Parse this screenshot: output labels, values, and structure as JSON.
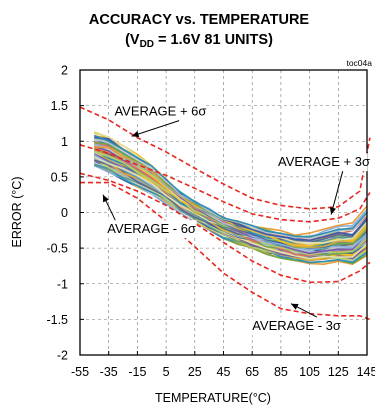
{
  "chart_data": {
    "type": "line",
    "title": "ACCURACY vs. TEMPERATURE",
    "subtitle_prefix": "(V",
    "subtitle_sub": "DD",
    "subtitle_suffix": " = 1.6V 81 UNITS)",
    "figure_id": "toc04a",
    "xlabel": "TEMPERATURE(°C)",
    "ylabel": "ERROR (°C)",
    "xlim": [
      -55,
      150
    ],
    "ylim": [
      -2,
      2
    ],
    "xticks": [
      -55,
      -35,
      -15,
      5,
      25,
      45,
      65,
      85,
      105,
      125,
      145
    ],
    "yticks": [
      2,
      1.5,
      1,
      0.5,
      0,
      -0.5,
      -1,
      -1.5,
      -2
    ],
    "grid": "dashed",
    "limit_lines": [
      {
        "label": "AVERAGE + 6σ",
        "color": "#e8261f",
        "x": [
          -55,
          -35,
          -15,
          5,
          25,
          45,
          65,
          85,
          105,
          125,
          140,
          150
        ],
        "y": [
          1.48,
          1.3,
          1.05,
          0.85,
          0.62,
          0.4,
          0.2,
          0.1,
          0.05,
          0.08,
          0.3,
          1.05
        ]
      },
      {
        "label": "AVERAGE + 3σ",
        "color": "#e8261f",
        "x": [
          -55,
          -35,
          -15,
          5,
          25,
          45,
          65,
          85,
          105,
          125,
          140,
          150
        ],
        "y": [
          0.95,
          0.83,
          0.67,
          0.52,
          0.34,
          0.15,
          -0.02,
          -0.1,
          -0.13,
          -0.08,
          0.05,
          0.28
        ]
      },
      {
        "label": "AVERAGE - 3σ",
        "color": "#e8261f",
        "x": [
          -55,
          -35,
          -15,
          5,
          25,
          45,
          65,
          85,
          105,
          125,
          140,
          150
        ],
        "y": [
          0.55,
          0.45,
          0.3,
          0.1,
          -0.15,
          -0.42,
          -0.68,
          -0.88,
          -0.98,
          -0.97,
          -0.82,
          -0.7
        ]
      },
      {
        "label": "AVERAGE - 6σ",
        "color": "#e8261f",
        "x": [
          -55,
          -35,
          -15,
          5,
          25,
          45,
          65,
          85,
          105,
          125,
          140,
          150
        ],
        "y": [
          0.42,
          0.42,
          0.2,
          -0.12,
          -0.48,
          -0.85,
          -1.12,
          -1.35,
          -1.42,
          -1.45,
          -1.45,
          -1.5
        ]
      }
    ],
    "annotations": [
      {
        "text": "AVERAGE + 6σ",
        "x": -31,
        "y": 1.36,
        "arrow_to_x": -19,
        "arrow_to_y": 1.07
      },
      {
        "text": "AVERAGE + 3σ",
        "x": 83,
        "y": 0.65,
        "arrow_to_x": 120,
        "arrow_to_y": -0.03
      },
      {
        "text": "AVERAGE - 6σ",
        "x": -36,
        "y": -0.29,
        "arrow_to_x": -39,
        "arrow_to_y": 0.25
      },
      {
        "text": "AVERAGE - 3σ",
        "x": 65,
        "y": -1.65,
        "arrow_to_x": 92,
        "arrow_to_y": -1.28
      }
    ],
    "unit_band": {
      "units": 81,
      "x": [
        -45,
        -35,
        -25,
        -15,
        -5,
        5,
        15,
        25,
        35,
        45,
        55,
        65,
        75,
        85,
        95,
        105,
        115,
        125,
        135,
        145
      ],
      "mean": [
        0.87,
        0.78,
        0.66,
        0.55,
        0.43,
        0.29,
        0.13,
        0.0,
        -0.11,
        -0.22,
        -0.29,
        -0.35,
        -0.41,
        -0.46,
        -0.51,
        -0.53,
        -0.5,
        -0.46,
        -0.45,
        -0.28
      ],
      "spread_upper": [
        0.2,
        0.25,
        0.25,
        0.24,
        0.22,
        0.18,
        0.16,
        0.16,
        0.16,
        0.17,
        0.17,
        0.16,
        0.16,
        0.17,
        0.17,
        0.18,
        0.2,
        0.22,
        0.22,
        0.28
      ],
      "spread_lower": [
        0.22,
        0.2,
        0.2,
        0.2,
        0.18,
        0.16,
        0.14,
        0.14,
        0.14,
        0.14,
        0.14,
        0.14,
        0.14,
        0.13,
        0.12,
        0.12,
        0.14,
        0.16,
        0.18,
        0.22
      ],
      "colors": [
        "#3d5ba9",
        "#e89d3a",
        "#6fa84a",
        "#9bb8dd",
        "#c8c8c8",
        "#2f8fb3",
        "#c9a84a",
        "#7b5aa6",
        "#d96b6b",
        "#5b9b9b",
        "#b0d070",
        "#f0c020",
        "#8ab0e0",
        "#5a6a8a",
        "#e0e0b0"
      ]
    }
  }
}
